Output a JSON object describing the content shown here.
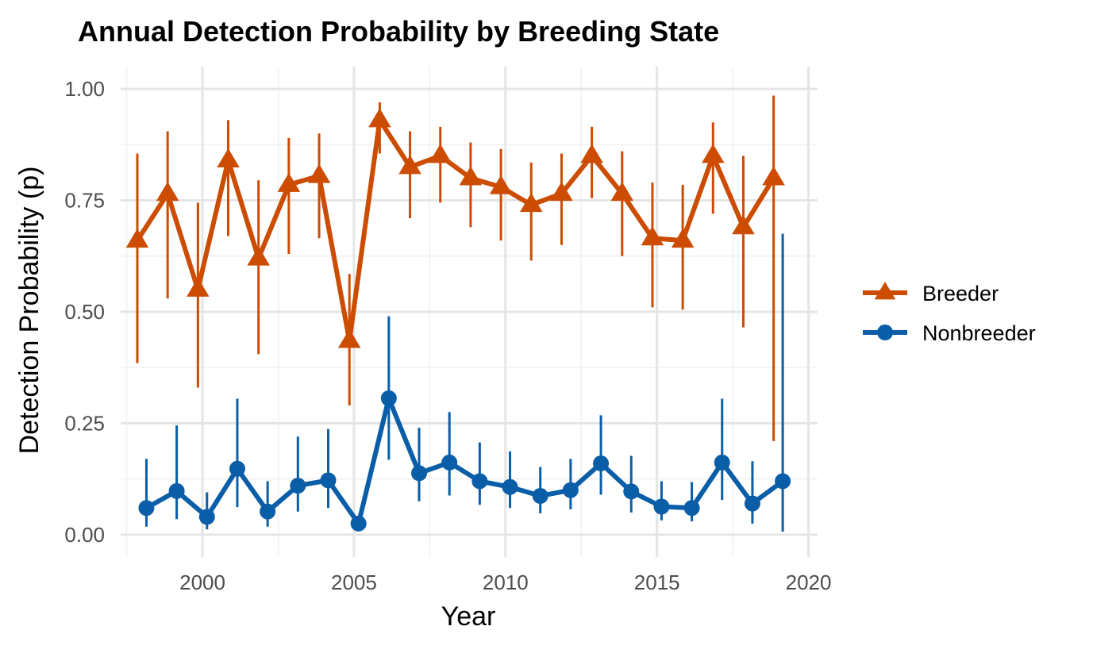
{
  "chart_data": {
    "type": "line",
    "title": "Annual Detection Probability by Breeding State",
    "xlabel": "Year",
    "ylabel": "Detection Probability (p)",
    "xlim": [
      1997.3,
      2020.3
    ],
    "ylim": [
      -0.05,
      1.05
    ],
    "x_ticks": [
      2000,
      2005,
      2010,
      2015,
      2020
    ],
    "x_tick_labels": [
      "2000",
      "2005",
      "2010",
      "2015",
      "2020"
    ],
    "y_ticks": [
      0,
      0.25,
      0.5,
      0.75,
      1.0
    ],
    "y_tick_labels": [
      "0.00",
      "0.25",
      "0.50",
      "0.75",
      "1.00"
    ],
    "grid": true,
    "legend_position": "right",
    "series": [
      {
        "name": "Breeder",
        "color": "#CC4C02",
        "marker": "triangle",
        "dodge": -0.15,
        "points": [
          {
            "x": 1998,
            "y": 0.66,
            "lo": 0.385,
            "hi": 0.855
          },
          {
            "x": 1999,
            "y": 0.765,
            "lo": 0.53,
            "hi": 0.905
          },
          {
            "x": 2000,
            "y": 0.55,
            "lo": 0.33,
            "hi": 0.745
          },
          {
            "x": 2001,
            "y": 0.84,
            "lo": 0.67,
            "hi": 0.93
          },
          {
            "x": 2002,
            "y": 0.62,
            "lo": 0.405,
            "hi": 0.795
          },
          {
            "x": 2003,
            "y": 0.785,
            "lo": 0.63,
            "hi": 0.89
          },
          {
            "x": 2004,
            "y": 0.805,
            "lo": 0.665,
            "hi": 0.9
          },
          {
            "x": 2005,
            "y": 0.435,
            "lo": 0.29,
            "hi": 0.585
          },
          {
            "x": 2006,
            "y": 0.93,
            "lo": 0.855,
            "hi": 0.97
          },
          {
            "x": 2007,
            "y": 0.825,
            "lo": 0.71,
            "hi": 0.905
          },
          {
            "x": 2008,
            "y": 0.85,
            "lo": 0.745,
            "hi": 0.915
          },
          {
            "x": 2009,
            "y": 0.8,
            "lo": 0.69,
            "hi": 0.88
          },
          {
            "x": 2010,
            "y": 0.78,
            "lo": 0.66,
            "hi": 0.865
          },
          {
            "x": 2011,
            "y": 0.74,
            "lo": 0.615,
            "hi": 0.835
          },
          {
            "x": 2012,
            "y": 0.765,
            "lo": 0.65,
            "hi": 0.855
          },
          {
            "x": 2013,
            "y": 0.85,
            "lo": 0.755,
            "hi": 0.915
          },
          {
            "x": 2014,
            "y": 0.765,
            "lo": 0.625,
            "hi": 0.86
          },
          {
            "x": 2015,
            "y": 0.665,
            "lo": 0.51,
            "hi": 0.79
          },
          {
            "x": 2016,
            "y": 0.66,
            "lo": 0.505,
            "hi": 0.785
          },
          {
            "x": 2017,
            "y": 0.85,
            "lo": 0.72,
            "hi": 0.925
          },
          {
            "x": 2018,
            "y": 0.69,
            "lo": 0.465,
            "hi": 0.85
          },
          {
            "x": 2019,
            "y": 0.8,
            "lo": 0.21,
            "hi": 0.985
          }
        ]
      },
      {
        "name": "Nonbreeder",
        "color": "#0A5EA8",
        "marker": "circle",
        "dodge": 0.15,
        "points": [
          {
            "x": 1998,
            "y": 0.06,
            "lo": 0.018,
            "hi": 0.17
          },
          {
            "x": 1999,
            "y": 0.098,
            "lo": 0.035,
            "hi": 0.245
          },
          {
            "x": 2000,
            "y": 0.04,
            "lo": 0.012,
            "hi": 0.095
          },
          {
            "x": 2001,
            "y": 0.148,
            "lo": 0.062,
            "hi": 0.305
          },
          {
            "x": 2002,
            "y": 0.052,
            "lo": 0.018,
            "hi": 0.12
          },
          {
            "x": 2003,
            "y": 0.11,
            "lo": 0.052,
            "hi": 0.22
          },
          {
            "x": 2004,
            "y": 0.122,
            "lo": 0.06,
            "hi": 0.237
          },
          {
            "x": 2005,
            "y": 0.025,
            "lo": 0.02,
            "hi": 0.03
          },
          {
            "x": 2006,
            "y": 0.306,
            "lo": 0.168,
            "hi": 0.49
          },
          {
            "x": 2007,
            "y": 0.138,
            "lo": 0.075,
            "hi": 0.24
          },
          {
            "x": 2008,
            "y": 0.162,
            "lo": 0.088,
            "hi": 0.275
          },
          {
            "x": 2009,
            "y": 0.12,
            "lo": 0.067,
            "hi": 0.207
          },
          {
            "x": 2010,
            "y": 0.107,
            "lo": 0.06,
            "hi": 0.187
          },
          {
            "x": 2011,
            "y": 0.087,
            "lo": 0.048,
            "hi": 0.152
          },
          {
            "x": 2012,
            "y": 0.1,
            "lo": 0.057,
            "hi": 0.17
          },
          {
            "x": 2013,
            "y": 0.16,
            "lo": 0.09,
            "hi": 0.268
          },
          {
            "x": 2014,
            "y": 0.097,
            "lo": 0.05,
            "hi": 0.177
          },
          {
            "x": 2015,
            "y": 0.063,
            "lo": 0.032,
            "hi": 0.12
          },
          {
            "x": 2016,
            "y": 0.06,
            "lo": 0.03,
            "hi": 0.118
          },
          {
            "x": 2017,
            "y": 0.162,
            "lo": 0.078,
            "hi": 0.305
          },
          {
            "x": 2018,
            "y": 0.07,
            "lo": 0.025,
            "hi": 0.165
          },
          {
            "x": 2019,
            "y": 0.12,
            "lo": 0.007,
            "hi": 0.675
          }
        ]
      }
    ]
  }
}
